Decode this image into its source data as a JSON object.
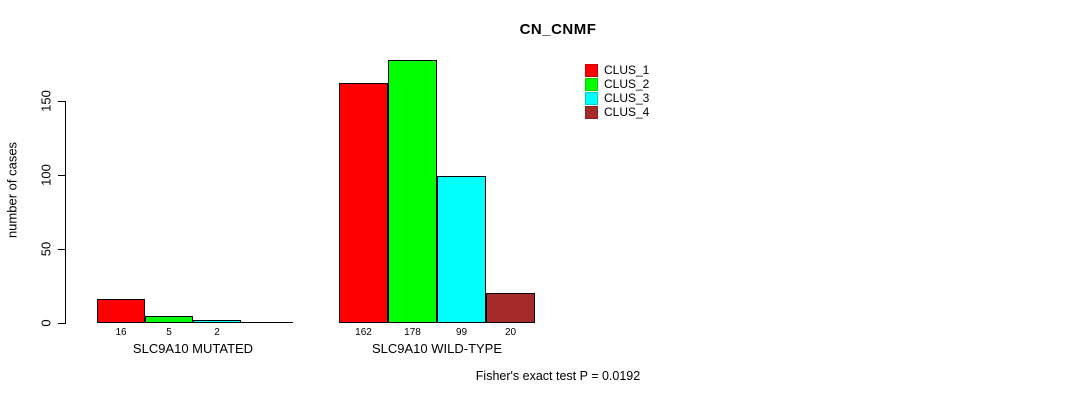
{
  "chart_data": {
    "type": "bar",
    "title": "CN_CNMF",
    "ylabel": "number of cases",
    "xlabel": "",
    "ylim": [
      0,
      150
    ],
    "yticks": [
      0,
      50,
      100,
      150
    ],
    "grid": false,
    "legend_position": "right-of-plot-top",
    "categories": [
      "SLC9A10 MUTATED",
      "SLC9A10 WILD-TYPE"
    ],
    "series": [
      {
        "name": "CLUS_1",
        "color": "#FF0000",
        "values": [
          16,
          162
        ]
      },
      {
        "name": "CLUS_2",
        "color": "#00FF00",
        "values": [
          5,
          178
        ]
      },
      {
        "name": "CLUS_3",
        "color": "#00FFFF",
        "values": [
          2,
          99
        ]
      },
      {
        "name": "CLUS_4",
        "color": "#A52A2A",
        "values": [
          0,
          20
        ]
      }
    ],
    "bar_value_labels": {
      "shown": true,
      "hidden_when_zero": true
    },
    "footnote": "Fisher's exact test P = 0.0192"
  },
  "colors": {
    "background": "#FFFFFF",
    "axis": "#000000",
    "bar_border": "#000000",
    "text": "#000000"
  }
}
